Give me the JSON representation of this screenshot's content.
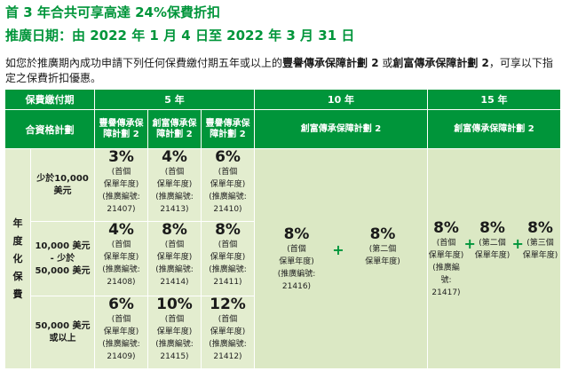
{
  "heading": {
    "title": "首 3 年合共可享高達 24%保費折扣",
    "promo_period": "推廣日期：由 2022 年 1 月 4 日至 2022 年 3 月 31 日"
  },
  "intro": {
    "part1": "如您於推廣期內成功申請下列任何保費繳付期五年或以上的",
    "plan_a": "豐譽傳承保障計劃 2",
    "part2": " 或",
    "plan_b": "創富傳承保障計劃 2",
    "part3": "，可享以下指定之保費折扣優惠。"
  },
  "table": {
    "col_header_term": "保費繳付期",
    "row_header_plan": "合資格計劃",
    "term_5": "5 年",
    "term_10": "10 年",
    "term_15": "15 年",
    "plan_fy": "豐譽傳承保障計劃 2",
    "plan_cf": "創富傳承保障計劃 2",
    "plan_fy2": "豐譽傳承保障計劃 2",
    "plan_cf10": "創富傳承保障計劃 2",
    "plan_cf15": "創富傳承保障計劃 2",
    "vertical_label": [
      "年",
      "度",
      "化",
      "保",
      "費"
    ],
    "bands": [
      {
        "label_line1": "少於10,000",
        "label_line2": "美元",
        "label_line3": ""
      },
      {
        "label_line1": "10,000 美元",
        "label_line2": "- 少於",
        "label_line3": "50,000 美元"
      },
      {
        "label_line1": "50,000 美元",
        "label_line2": "或以上",
        "label_line3": ""
      }
    ],
    "five_year": [
      [
        {
          "pct": "3%",
          "desc1": "(首個",
          "desc2": "保單年度)",
          "code1": "(推廣編號:",
          "code2": "21407)"
        },
        {
          "pct": "4%",
          "desc1": "(首個",
          "desc2": "保單年度)",
          "code1": "(推廣編號:",
          "code2": "21413)"
        },
        {
          "pct": "6%",
          "desc1": "(首個",
          "desc2": "保單年度)",
          "code1": "(推廣編號:",
          "code2": "21410)"
        }
      ],
      [
        {
          "pct": "4%",
          "desc1": "(首個",
          "desc2": "保單年度)",
          "code1": "(推廣編號:",
          "code2": "21408)"
        },
        {
          "pct": "8%",
          "desc1": "(首個",
          "desc2": "保單年度)",
          "code1": "(推廣編號:",
          "code2": "21414)"
        },
        {
          "pct": "8%",
          "desc1": "(首個",
          "desc2": "保單年度)",
          "code1": "(推廣編號:",
          "code2": "21411)"
        }
      ],
      [
        {
          "pct": "6%",
          "desc1": "(首個",
          "desc2": "保單年度)",
          "code1": "(推廣編號:",
          "code2": "21409)"
        },
        {
          "pct": "10%",
          "desc1": "(首個",
          "desc2": "保單年度)",
          "code1": "(推廣編號:",
          "code2": "21415)"
        },
        {
          "pct": "12%",
          "desc1": "(首個",
          "desc2": "保單年度)",
          "code1": "(推廣編號:",
          "code2": "21412)"
        }
      ]
    ],
    "ten_year": {
      "first_pct": "8%",
      "first_desc1": "(首個",
      "first_desc2": "保單年度)",
      "first_code1": "(推廣編號:",
      "first_code2": "21416)",
      "plus": "+",
      "second_pct": "8%",
      "second_desc1": "(第二個",
      "second_desc2": "保單年度)"
    },
    "fifteen_year": {
      "first_pct": "8%",
      "first_desc1": "(首個",
      "first_desc2": "保單年度)",
      "first_code1": "(推廣編號:",
      "first_code2": "21417)",
      "plus1": "+",
      "second_pct": "8%",
      "second_desc1": "(第二個",
      "second_desc2": "保單年度)",
      "plus2": "+",
      "third_pct": "8%",
      "third_desc1": "(第三個",
      "third_desc2": "保單年度)"
    }
  },
  "colors": {
    "brand_green": "#00953a",
    "light_green": "#e3edcf"
  }
}
